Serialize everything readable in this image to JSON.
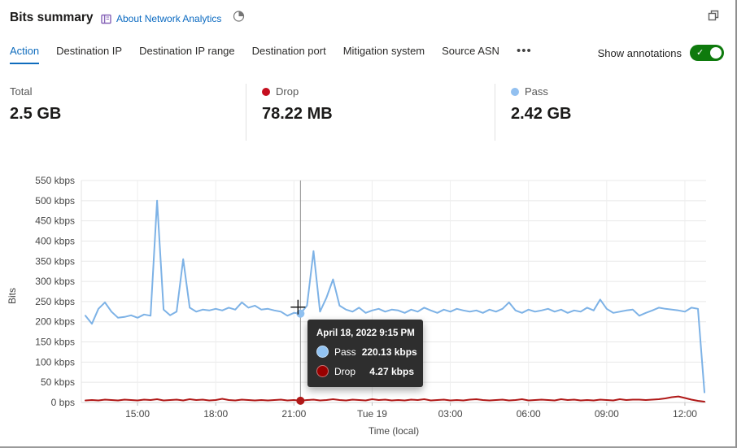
{
  "header": {
    "title": "Bits summary",
    "about_link": "About Network Analytics"
  },
  "tabs": {
    "items": [
      {
        "label": "Action",
        "active": true
      },
      {
        "label": "Destination IP",
        "active": false
      },
      {
        "label": "Destination IP range",
        "active": false
      },
      {
        "label": "Destination port",
        "active": false
      },
      {
        "label": "Mitigation system",
        "active": false
      },
      {
        "label": "Source ASN",
        "active": false
      }
    ],
    "more_label": "•••"
  },
  "annotations_toggle": {
    "label": "Show annotations",
    "state": "on",
    "accent": "#0e7a0d"
  },
  "stats": [
    {
      "label": "Total",
      "value": "2.5 GB",
      "dot_color": null
    },
    {
      "label": "Drop",
      "value": "78.22 MB",
      "dot_color": "#c50f1f"
    },
    {
      "label": "Pass",
      "value": "2.42 GB",
      "dot_color": "#92c0f0"
    }
  ],
  "tooltip": {
    "title": "April 18, 2022 9:15 PM",
    "rows": [
      {
        "name": "Pass",
        "value": "220.13 kbps",
        "color": "#92c3f2"
      },
      {
        "name": "Drop",
        "value": "4.27 kbps",
        "color": "#990000"
      }
    ]
  },
  "chart_data": {
    "type": "line",
    "title": "Bits summary",
    "xlabel": "Time (local)",
    "ylabel": "Bits",
    "unit": "kbps",
    "ylim": [
      0,
      550
    ],
    "x_start": "Apr 18 13:00",
    "interval_minutes": 15,
    "grid": true,
    "y_ticks": {
      "values": [
        0,
        50,
        100,
        150,
        200,
        250,
        300,
        350,
        400,
        450,
        500,
        550
      ],
      "labels": [
        "0 bps",
        "50 kbps",
        "100 kbps",
        "150 kbps",
        "200 kbps",
        "250 kbps",
        "300 kbps",
        "350 kbps",
        "400 kbps",
        "450 kbps",
        "500 kbps",
        "550 kbps"
      ]
    },
    "x_ticks": {
      "indices": [
        8,
        20,
        32,
        44,
        56,
        68,
        80,
        92
      ],
      "labels": [
        "15:00",
        "18:00",
        "21:00",
        "Tue 19",
        "03:00",
        "06:00",
        "09:00",
        "12:00"
      ]
    },
    "series": [
      {
        "name": "Pass",
        "color": "#7db2e6",
        "values": [
          215,
          195,
          232,
          248,
          225,
          210,
          212,
          216,
          210,
          218,
          215,
          500,
          230,
          216,
          225,
          355,
          235,
          225,
          230,
          228,
          232,
          228,
          235,
          230,
          248,
          235,
          240,
          230,
          232,
          228,
          225,
          215,
          222,
          220.13,
          240,
          375,
          225,
          260,
          305,
          240,
          230,
          225,
          235,
          222,
          228,
          232,
          225,
          230,
          228,
          222,
          230,
          225,
          235,
          228,
          222,
          230,
          225,
          232,
          228,
          225,
          228,
          222,
          230,
          225,
          232,
          248,
          228,
          222,
          230,
          225,
          228,
          232,
          225,
          230,
          222,
          228,
          225,
          235,
          228,
          255,
          232,
          222,
          225,
          228,
          230,
          215,
          222,
          228,
          235,
          232,
          230,
          228,
          225,
          235,
          232,
          25
        ]
      },
      {
        "name": "Drop",
        "color": "#b01817",
        "values": [
          5,
          6,
          5,
          7,
          6,
          5,
          7,
          6,
          5,
          7,
          6,
          8,
          5,
          6,
          7,
          5,
          8,
          6,
          7,
          5,
          6,
          9,
          6,
          5,
          7,
          6,
          5,
          6,
          5,
          6,
          7,
          5,
          6,
          4.27,
          6,
          7,
          5,
          6,
          8,
          6,
          5,
          7,
          6,
          5,
          8,
          6,
          7,
          5,
          6,
          5,
          7,
          6,
          8,
          5,
          6,
          7,
          5,
          6,
          5,
          7,
          8,
          6,
          5,
          6,
          7,
          5,
          6,
          8,
          5,
          6,
          7,
          6,
          5,
          8,
          6,
          7,
          5,
          6,
          5,
          7,
          6,
          5,
          8,
          6,
          7,
          7,
          6,
          7,
          8,
          10,
          13,
          15,
          11,
          7,
          4,
          2
        ]
      }
    ],
    "hover": {
      "index": 33,
      "pass_dot_color": "#8fc0f0",
      "drop_dot_color": "#b01817"
    }
  }
}
